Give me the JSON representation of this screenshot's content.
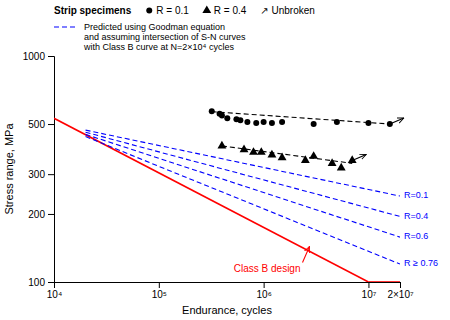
{
  "chart_data": {
    "type": "line",
    "xlabel": "Endurance, cycles",
    "ylabel": "Stress range, MPa",
    "log": true,
    "xlim": [
      10000,
      20000000
    ],
    "ylim": [
      100,
      1000
    ],
    "xticks": [
      {
        "value": 10000,
        "label": "10⁴"
      },
      {
        "value": 100000,
        "label": "10⁵"
      },
      {
        "value": 1000000,
        "label": "10⁶"
      },
      {
        "value": 10000000,
        "label": "10⁷"
      },
      {
        "value": 20000000,
        "label": "2×10⁷"
      }
    ],
    "yticks": [
      100,
      200,
      300,
      500,
      1000
    ],
    "grid": false,
    "series": [
      {
        "type": "line",
        "color": "red",
        "line_style": "solid",
        "x": [
          10000,
          10000000
        ],
        "values": [
          530,
          100
        ]
      },
      {
        "type": "line",
        "color": "red",
        "line_style": "solid",
        "x": [
          10000000,
          20000000
        ],
        "values": [
          100,
          100
        ]
      },
      {
        "name": "R=0.1",
        "type": "line",
        "color": "blue",
        "line_style": "dashed",
        "x": [
          20000,
          20000000
        ],
        "values": [
          470,
          240
        ]
      },
      {
        "name": "R=0.4",
        "type": "line",
        "color": "blue",
        "line_style": "dashed",
        "x": [
          20000,
          20000000
        ],
        "values": [
          460,
          195
        ]
      },
      {
        "name": "R=0.6",
        "type": "line",
        "color": "blue",
        "line_style": "dashed",
        "x": [
          20000,
          20000000
        ],
        "values": [
          450,
          158
        ]
      },
      {
        "name": "R ≥ 0.76",
        "type": "line",
        "color": "blue",
        "line_style": "dashed",
        "x": [
          20000,
          20000000
        ],
        "values": [
          440,
          120
        ]
      },
      {
        "name": "R = 0.1",
        "type": "scatter",
        "color": "black",
        "marker": "circle",
        "x": [
          320000,
          380000,
          400000,
          450000,
          550000,
          600000,
          700000,
          850000,
          1000000,
          1200000,
          1500000,
          3000000,
          5000000,
          10000000,
          16000000
        ],
        "values": [
          570,
          555,
          545,
          530,
          525,
          520,
          510,
          505,
          510,
          505,
          510,
          500,
          510,
          505,
          500
        ]
      },
      {
        "name": "R = 0.4",
        "type": "scatter",
        "color": "black",
        "marker": "triangle",
        "x": [
          400000,
          650000,
          800000,
          950000,
          1200000,
          1500000,
          2500000,
          3000000,
          4500000,
          5500000,
          7000000
        ],
        "values": [
          400,
          385,
          375,
          375,
          365,
          355,
          345,
          360,
          335,
          320,
          345
        ]
      },
      {
        "type": "line",
        "color": "black",
        "line_style": "dashed",
        "x": [
          320000,
          16000000
        ],
        "values": [
          567,
          500
        ]
      },
      {
        "type": "line",
        "color": "black",
        "line_style": "dashed",
        "x": [
          400000,
          7000000
        ],
        "values": [
          400,
          335
        ]
      },
      {
        "name": "↗ Unbroken",
        "type": "scatter",
        "color": "black",
        "marker": "arrow",
        "x": [
          16000000,
          7000000
        ],
        "values": [
          500,
          345
        ]
      }
    ],
    "annotations": [
      {
        "text": "Class B design",
        "color": "red",
        "x": 2800000,
        "y": 148
      },
      {
        "text": "Strip specimens"
      },
      {
        "text": "Predicted using Goodman equation\nand assuming intersection of S-N curves\nwith Class B curve at N=2×10⁴ cycles",
        "color": "blue",
        "line_style": "dashed"
      }
    ]
  }
}
